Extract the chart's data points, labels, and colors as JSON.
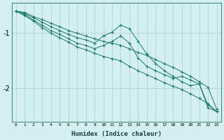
{
  "xlabel": "Humidex (Indice chaleur)",
  "bg_color": "#d4efef",
  "grid_color": "#b8d8d8",
  "line_color": "#1a7a6e",
  "xlim": [
    -0.5,
    23.5
  ],
  "ylim": [
    -2.6,
    -0.45
  ],
  "yticks": [
    -2,
    -1
  ],
  "series": [
    {
      "x": [
        0,
        1,
        2,
        3,
        4,
        5,
        6,
        7,
        8,
        9,
        10,
        11,
        12,
        13,
        14,
        15,
        16,
        17,
        18,
        19,
        20,
        21,
        22,
        23
      ],
      "y": [
        -0.6,
        -0.62,
        -0.7,
        -0.75,
        -0.82,
        -0.88,
        -0.95,
        -1.0,
        -1.05,
        -1.1,
        -1.15,
        -1.18,
        -1.22,
        -1.28,
        -1.35,
        -1.4,
        -1.48,
        -1.55,
        -1.62,
        -1.7,
        -1.78,
        -1.88,
        -1.98,
        -2.38
      ]
    },
    {
      "x": [
        0,
        1,
        2,
        3,
        4,
        5,
        6,
        7,
        8,
        9,
        10,
        11,
        12,
        13,
        14,
        15,
        16,
        17,
        18,
        19,
        20,
        21,
        22,
        23
      ],
      "y": [
        -0.6,
        -0.64,
        -0.72,
        -0.8,
        -0.88,
        -0.95,
        -1.02,
        -1.08,
        -1.12,
        -1.18,
        -1.05,
        -0.98,
        -0.85,
        -0.92,
        -1.15,
        -1.38,
        -1.55,
        -1.68,
        -1.78,
        -1.88,
        -1.95,
        -1.92,
        -2.3,
        -2.42
      ]
    },
    {
      "x": [
        0,
        1,
        2,
        3,
        4,
        5,
        6,
        7,
        8,
        9,
        10,
        11,
        12,
        13,
        14,
        15,
        16,
        17,
        18,
        19,
        20,
        21,
        22,
        23
      ],
      "y": [
        -0.6,
        -0.66,
        -0.76,
        -0.86,
        -0.95,
        -1.02,
        -1.1,
        -1.18,
        -1.22,
        -1.28,
        -1.22,
        -1.15,
        -1.05,
        -1.18,
        -1.45,
        -1.6,
        -1.68,
        -1.75,
        -1.82,
        -1.78,
        -1.85,
        -1.92,
        -2.35,
        -2.42
      ]
    },
    {
      "x": [
        0,
        1,
        2,
        3,
        4,
        5,
        6,
        7,
        8,
        9,
        10,
        11,
        12,
        13,
        14,
        15,
        16,
        17,
        18,
        19,
        20,
        21,
        22,
        23
      ],
      "y": [
        -0.6,
        -0.68,
        -0.78,
        -0.9,
        -1.0,
        -1.08,
        -1.16,
        -1.25,
        -1.3,
        -1.36,
        -1.42,
        -1.46,
        -1.5,
        -1.6,
        -1.68,
        -1.75,
        -1.82,
        -1.9,
        -1.96,
        -2.02,
        -2.1,
        -2.18,
        -2.28,
        -2.42
      ]
    }
  ]
}
